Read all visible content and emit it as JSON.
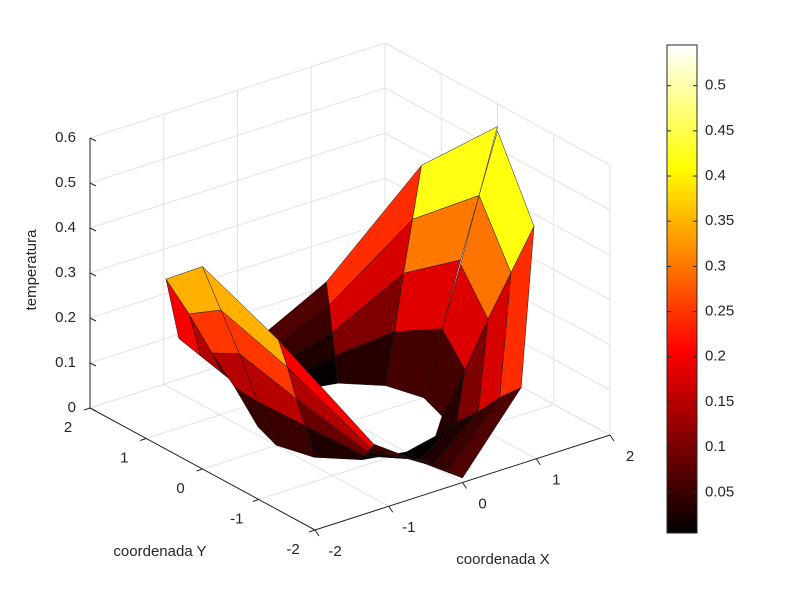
{
  "chart_data": {
    "type": "surface",
    "xlabel": "coordenada X",
    "ylabel": "coordenada Y",
    "zlabel": "temperatura",
    "xlim": [
      -2,
      2
    ],
    "ylim": [
      -2,
      2
    ],
    "zlim": [
      0,
      0.6
    ],
    "xticks": [
      -2,
      -1,
      0,
      1,
      2
    ],
    "yticks": [
      -2,
      -1,
      0,
      1,
      2
    ],
    "zticks": [
      0,
      0.1,
      0.2,
      0.3,
      0.4,
      0.5,
      0.6
    ],
    "grid": true,
    "colormap": "hot",
    "r": [
      1,
      1.25,
      1.5,
      1.75,
      2
    ],
    "theta": [
      0,
      30,
      60,
      90,
      120,
      150,
      180,
      210,
      240,
      270,
      300,
      330,
      360
    ],
    "z": [
      [
        0,
        0,
        0,
        0,
        0,
        0,
        0,
        0,
        0,
        0,
        0,
        0,
        0
      ],
      [
        0.14,
        0.1,
        0.04,
        0,
        0.03,
        0.09,
        0.11,
        0.09,
        0.03,
        0,
        0.04,
        0.1,
        0.14
      ],
      [
        0.28,
        0.21,
        0.07,
        0.01,
        0.06,
        0.17,
        0.23,
        0.17,
        0.06,
        0.01,
        0.07,
        0.21,
        0.27
      ],
      [
        0.41,
        0.31,
        0.11,
        0.01,
        0.09,
        0.26,
        0.34,
        0.26,
        0.09,
        0.01,
        0.11,
        0.31,
        0.41
      ],
      [
        0.55,
        0.41,
        0.14,
        0.01,
        0.12,
        0.34,
        0.45,
        0.34,
        0.12,
        0.01,
        0.14,
        0.41,
        0.54
      ]
    ],
    "clim": [
      0.005,
      0.545
    ],
    "colorbar_ticks": [
      0.05,
      0.1,
      0.15,
      0.2,
      0.25,
      0.3,
      0.35,
      0.4,
      0.45,
      0.5
    ]
  }
}
